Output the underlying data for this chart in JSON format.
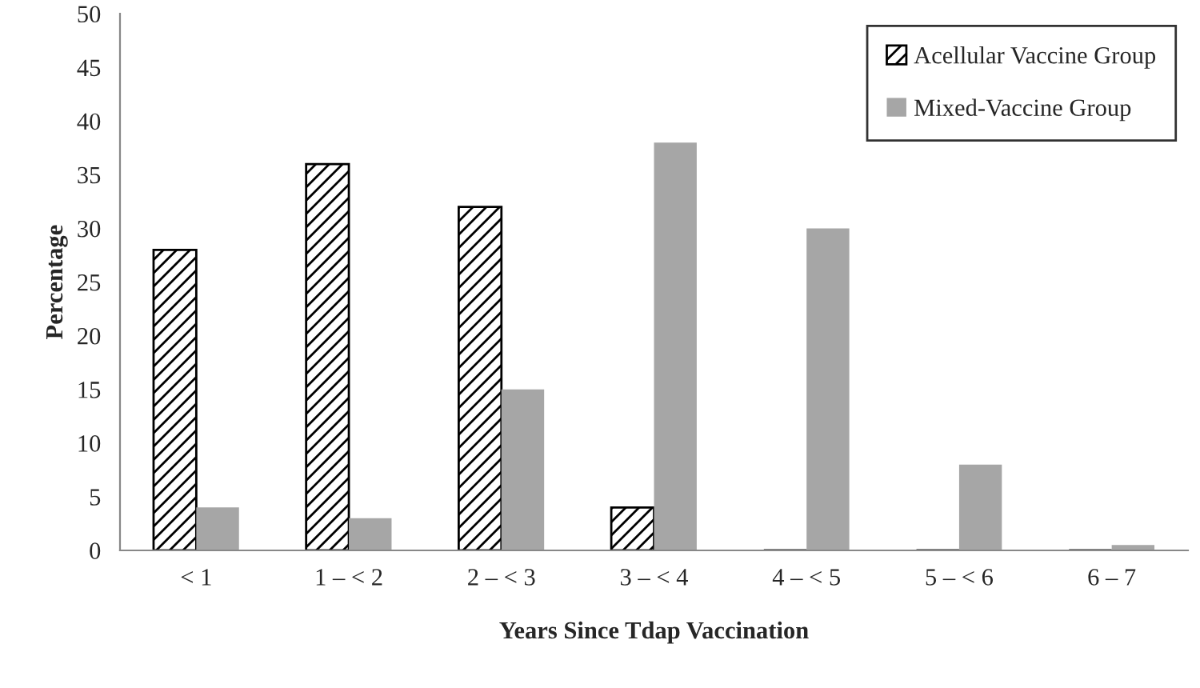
{
  "chart_data": {
    "type": "bar",
    "xlabel": "Years Since Tdap Vaccination",
    "ylabel": "Percentage",
    "categories": [
      "< 1",
      "1 – < 2",
      "2 – < 3",
      "3 – < 4",
      "4 – < 5",
      "5 – < 6",
      "6 – 7"
    ],
    "series": [
      {
        "name": "Acellular Vaccine Group",
        "color": "#000000",
        "values": [
          28,
          36,
          32,
          4,
          0,
          0,
          0
        ]
      },
      {
        "name": "Mixed-Vaccine Group",
        "color": "#a6a6a6",
        "values": [
          4,
          3,
          15,
          38,
          30,
          8,
          0.5
        ]
      }
    ],
    "ylim": [
      0,
      50
    ],
    "yticks": [
      0,
      5,
      10,
      15,
      20,
      25,
      30,
      35,
      40,
      45,
      50
    ],
    "grid": false,
    "legend": "top right"
  }
}
